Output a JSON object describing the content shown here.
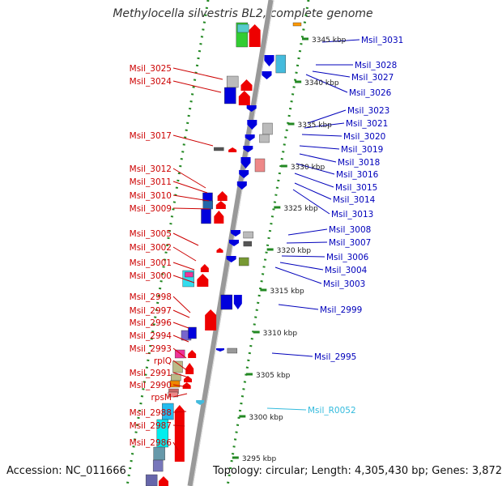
{
  "title": "Methylocella silvestris BL2, complete genome",
  "footer": {
    "accession": "Accession: NC_011666",
    "summary": "Topology: circular; Length: 4,305,430 bp; Genes: 3,872"
  },
  "colors": {
    "left_label": "#cc0000",
    "right_label": "#0000bb",
    "rna_label": "#33bbdd",
    "tick_label": "#222222",
    "track_dots": "#228822",
    "backbone": "#999999",
    "forward_strand": "#ee0000",
    "reverse_strand": "#0000dd"
  },
  "scale_ticks": [
    "3345 kbp",
    "3340 kbp",
    "3335 kbp",
    "3330 kbp",
    "3325 kbp",
    "3320 kbp",
    "3315 kbp",
    "3310 kbp",
    "3305 kbp",
    "3300 kbp",
    "3295 kbp"
  ],
  "left_labels": [
    "Msil_3025",
    "Msil_3024",
    "Msil_3017",
    "Msil_3012",
    "Msil_3011",
    "Msil_3010",
    "Msil_3009",
    "Msil_3005",
    "Msil_3002",
    "Msil_3001",
    "Msil_3000",
    "Msil_2998",
    "Msil_2997",
    "Msil_2996",
    "Msil_2994",
    "Msil_2993",
    "rplQ",
    "Msil_2991",
    "Msil_2990",
    "rpsM",
    "Msil_2988",
    "Msil_2987",
    "Msil_2986"
  ],
  "right_labels": [
    "Msil_3031",
    "Msil_3028",
    "Msil_3027",
    "Msil_3026",
    "Msil_3023",
    "Msil_3021",
    "Msil_3020",
    "Msil_3019",
    "Msil_3018",
    "Msil_3016",
    "Msil_3015",
    "Msil_3014",
    "Msil_3013",
    "Msil_3008",
    "Msil_3007",
    "Msil_3006",
    "Msil_3004",
    "Msil_3003",
    "Msil_2999",
    "Msil_2995",
    "Msil_R0052"
  ],
  "rna_labels": [
    "Msil_R0052"
  ]
}
